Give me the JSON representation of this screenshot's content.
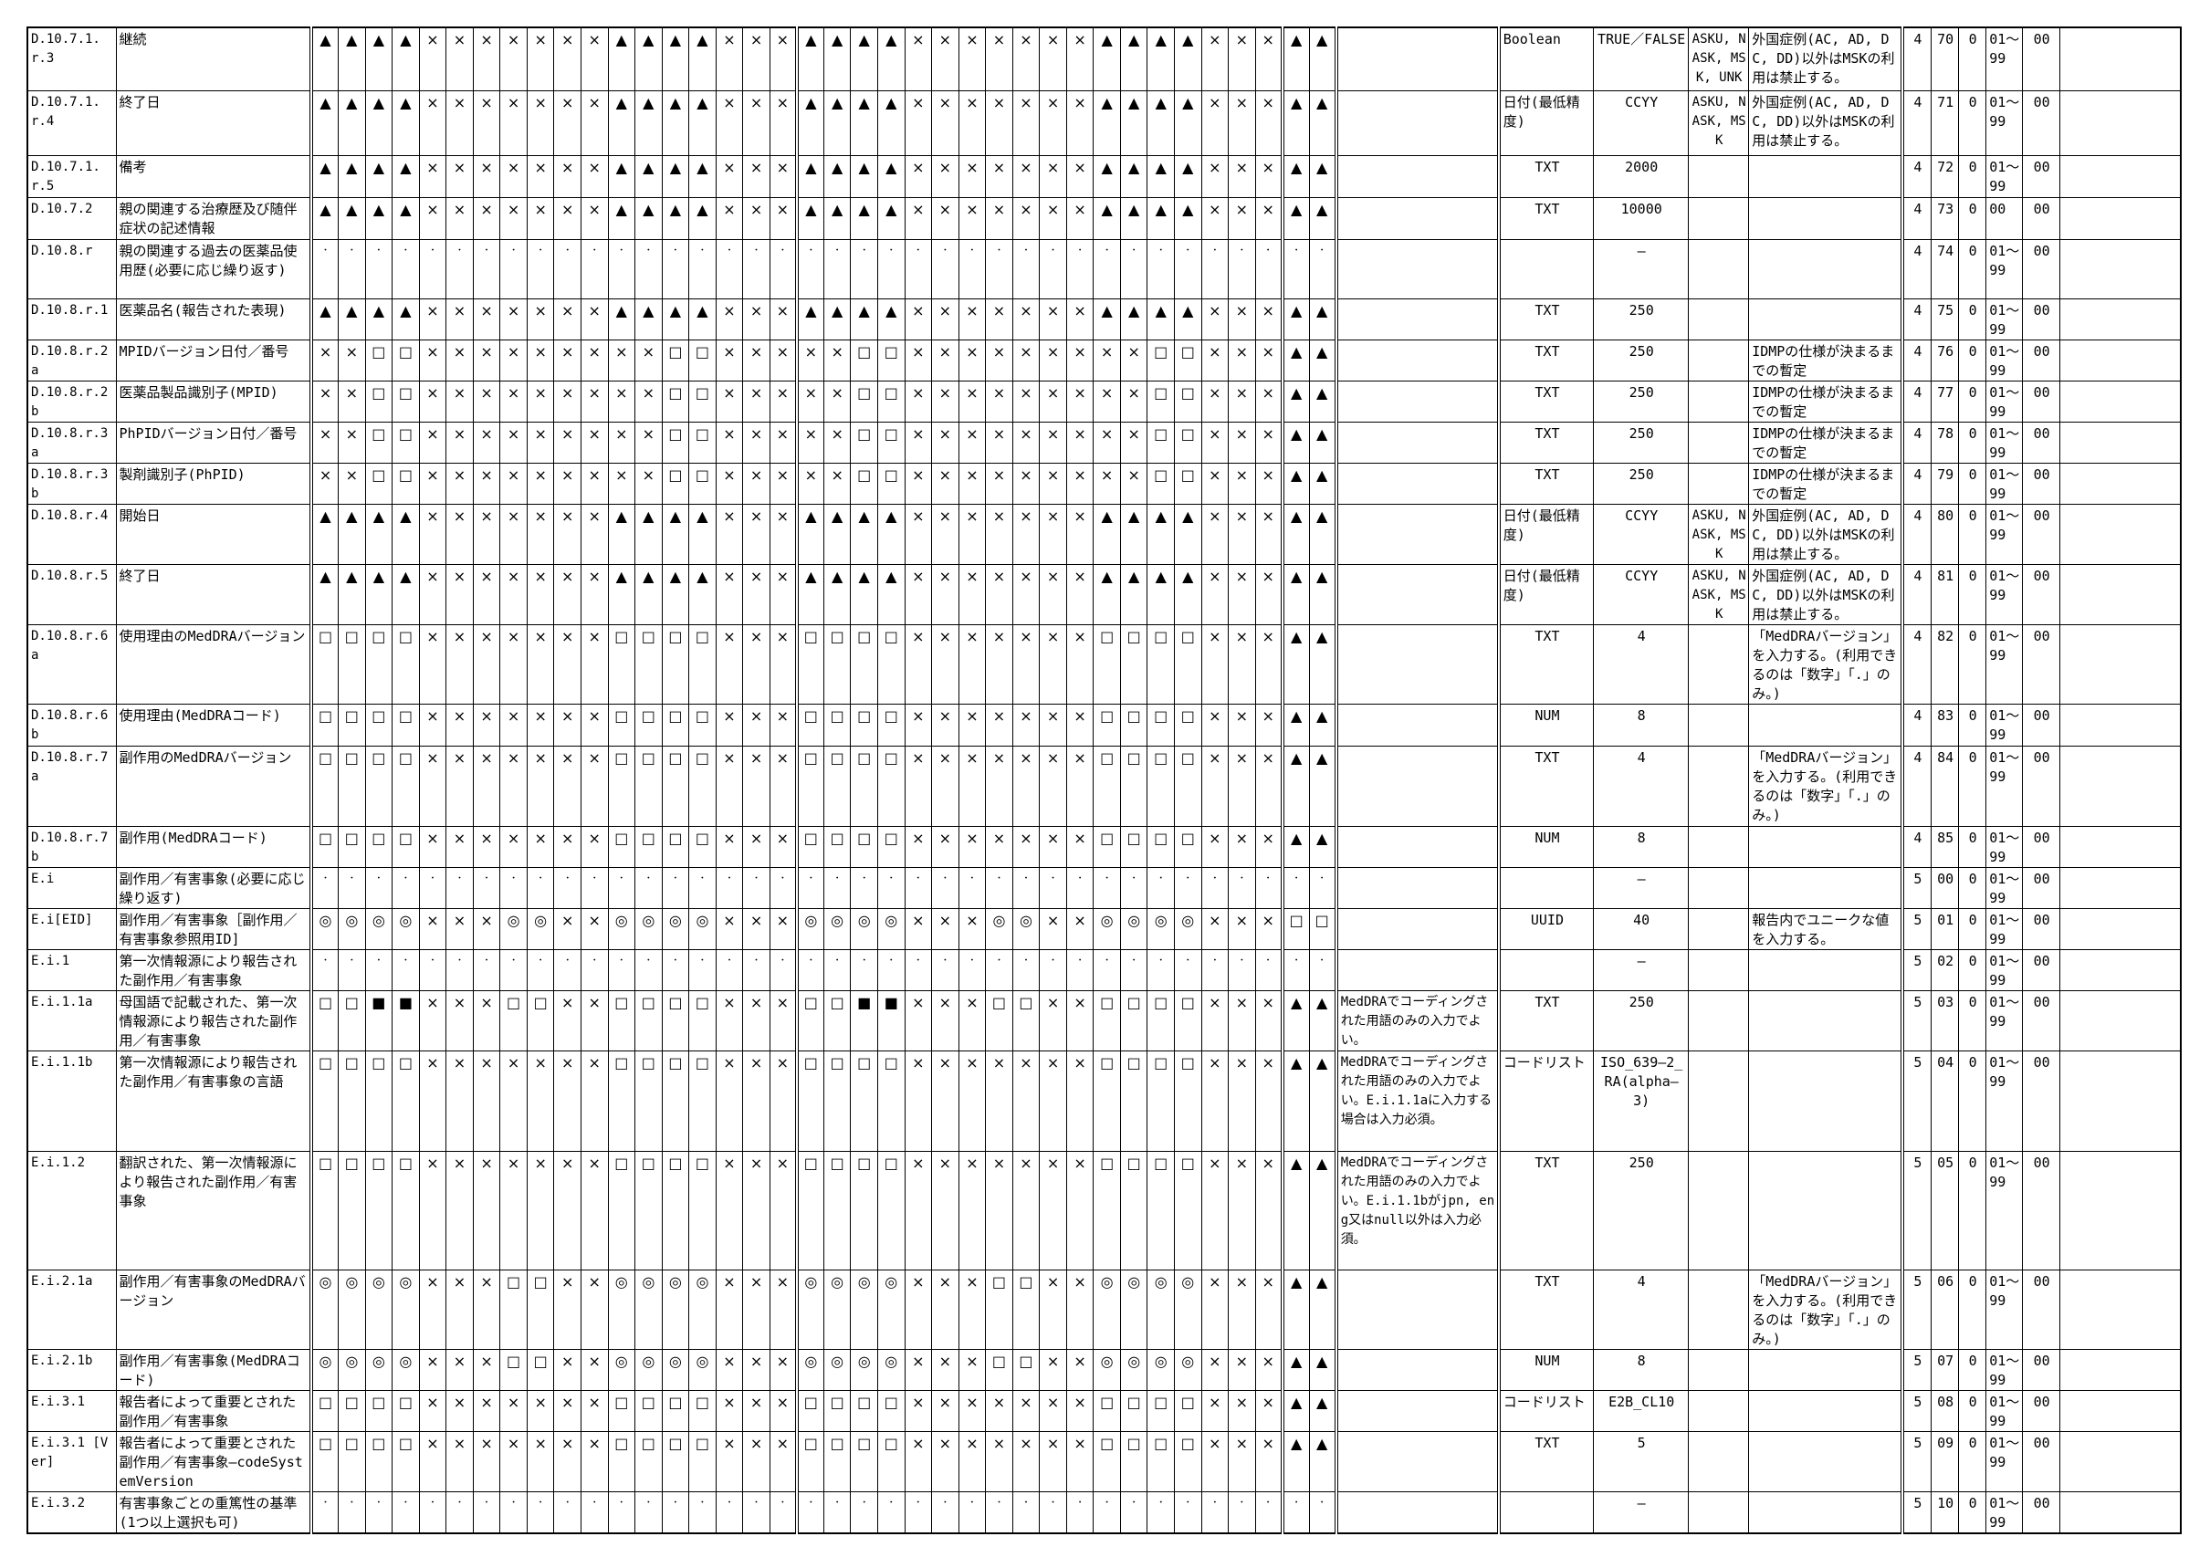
{
  "rows": [
    {
      "id": "D.10.7.1.r.3",
      "name": "継続",
      "g1": "▲▲▲▲×××××××▲▲▲▲×××",
      "g2": "▲▲▲▲×××××××▲▲▲▲×××",
      "g3": "▲▲",
      "notes": "",
      "type": "Boolean",
      "length": "TRUE／FALSE",
      "nullflavor": "ASKU, NASK, MSK, UNK",
      "notes2": "外国症例(AC, AD, DC, DD)以外はMSKの利用は禁止する。",
      "c1": "4",
      "c2": "70",
      "c3": "0",
      "c4": "01～99",
      "c5": "00"
    },
    {
      "id": "D.10.7.1.r.4",
      "name": "終了日",
      "g1": "▲▲▲▲×××××××▲▲▲▲×××",
      "g2": "▲▲▲▲×××××××▲▲▲▲×××",
      "g3": "▲▲",
      "notes": "",
      "type": "日付(最低精度)",
      "length": "CCYY",
      "nullflavor": "ASKU, NASK, MSK",
      "notes2": "外国症例(AC, AD, DC, DD)以外はMSKの利用は禁止する。",
      "c1": "4",
      "c2": "71",
      "c3": "0",
      "c4": "01～99",
      "c5": "00"
    },
    {
      "id": "D.10.7.1.r.5",
      "name": "備考",
      "g1": "▲▲▲▲×××××××▲▲▲▲×××",
      "g2": "▲▲▲▲×××××××▲▲▲▲×××",
      "g3": "▲▲",
      "notes": "",
      "type": "TXT",
      "length": "2000",
      "nullflavor": "",
      "notes2": "",
      "c1": "4",
      "c2": "72",
      "c3": "0",
      "c4": "01～99",
      "c5": "00"
    },
    {
      "id": "D.10.7.2",
      "name": "親の関連する治療歴及び随伴症状の記述情報",
      "g1": "▲▲▲▲×××××××▲▲▲▲×××",
      "g2": "▲▲▲▲×××××××▲▲▲▲×××",
      "g3": "▲▲",
      "notes": "",
      "type": "TXT",
      "length": "10000",
      "nullflavor": "",
      "notes2": "",
      "c1": "4",
      "c2": "73",
      "c3": "0",
      "c4": "00",
      "c5": "00"
    },
    {
      "id": "D.10.8.r",
      "name": "親の関連する過去の医薬品使用歴(必要に応じ繰り返す)",
      "g1": "・・・・・・・・・・・・・・・・・・",
      "g2": "・・・・・・・・・・・・・・・・・・",
      "g3": "・・",
      "notes": "",
      "type": "",
      "length": "—",
      "nullflavor": "",
      "notes2": "",
      "c1": "4",
      "c2": "74",
      "c3": "0",
      "c4": "01～99",
      "c5": "00"
    },
    {
      "id": "D.10.8.r.1",
      "name": "医薬品名(報告された表現)",
      "g1": "▲▲▲▲×××××××▲▲▲▲×××",
      "g2": "▲▲▲▲×××××××▲▲▲▲×××",
      "g3": "▲▲",
      "notes": "",
      "type": "TXT",
      "length": "250",
      "nullflavor": "",
      "notes2": "",
      "c1": "4",
      "c2": "75",
      "c3": "0",
      "c4": "01～99",
      "c5": "00"
    },
    {
      "id": "D.10.8.r.2a",
      "name": "MPIDバージョン日付／番号",
      "g1": "××□□×××××××××□□×××",
      "g2": "××□□×××××××××□□×××",
      "g3": "▲▲",
      "notes": "",
      "type": "TXT",
      "length": "250",
      "nullflavor": "",
      "notes2": "IDMPの仕様が決まるまでの暫定",
      "c1": "4",
      "c2": "76",
      "c3": "0",
      "c4": "01～99",
      "c5": "00"
    },
    {
      "id": "D.10.8.r.2b",
      "name": "医薬品製品識別子(MPID)",
      "g1": "××□□×××××××××□□×××",
      "g2": "××□□×××××××××□□×××",
      "g3": "▲▲",
      "notes": "",
      "type": "TXT",
      "length": "250",
      "nullflavor": "",
      "notes2": "IDMPの仕様が決まるまでの暫定",
      "c1": "4",
      "c2": "77",
      "c3": "0",
      "c4": "01～99",
      "c5": "00"
    },
    {
      "id": "D.10.8.r.3a",
      "name": "PhPIDバージョン日付／番号",
      "g1": "××□□×××××××××□□×××",
      "g2": "××□□×××××××××□□×××",
      "g3": "▲▲",
      "notes": "",
      "type": "TXT",
      "length": "250",
      "nullflavor": "",
      "notes2": "IDMPの仕様が決まるまでの暫定",
      "c1": "4",
      "c2": "78",
      "c3": "0",
      "c4": "01～99",
      "c5": "00"
    },
    {
      "id": "D.10.8.r.3b",
      "name": "製剤識別子(PhPID)",
      "g1": "××□□×××××××××□□×××",
      "g2": "××□□×××××××××□□×××",
      "g3": "▲▲",
      "notes": "",
      "type": "TXT",
      "length": "250",
      "nullflavor": "",
      "notes2": "IDMPの仕様が決まるまでの暫定",
      "c1": "4",
      "c2": "79",
      "c3": "0",
      "c4": "01～99",
      "c5": "00"
    },
    {
      "id": "D.10.8.r.4",
      "name": "開始日",
      "g1": "▲▲▲▲×××××××▲▲▲▲×××",
      "g2": "▲▲▲▲×××××××▲▲▲▲×××",
      "g3": "▲▲",
      "notes": "",
      "type": "日付(最低精度)",
      "length": "CCYY",
      "nullflavor": "ASKU, NASK, MSK",
      "notes2": "外国症例(AC, AD, DC, DD)以外はMSKの利用は禁止する。",
      "c1": "4",
      "c2": "80",
      "c3": "0",
      "c4": "01～99",
      "c5": "00"
    },
    {
      "id": "D.10.8.r.5",
      "name": "終了日",
      "g1": "▲▲▲▲×××××××▲▲▲▲×××",
      "g2": "▲▲▲▲×××××××▲▲▲▲×××",
      "g3": "▲▲",
      "notes": "",
      "type": "日付(最低精度)",
      "length": "CCYY",
      "nullflavor": "ASKU, NASK, MSK",
      "notes2": "外国症例(AC, AD, DC, DD)以外はMSKの利用は禁止する。",
      "c1": "4",
      "c2": "81",
      "c3": "0",
      "c4": "01～99",
      "c5": "00"
    },
    {
      "id": "D.10.8.r.6a",
      "name": "使用理由のMedDRAバージョン",
      "g1": "□□□□×××××××□□□□×××",
      "g2": "□□□□×××××××□□□□×××",
      "g3": "▲▲",
      "notes": "",
      "type": "TXT",
      "length": "4",
      "nullflavor": "",
      "notes2": "「MedDRAバージョン」を入力する。(利用できるのは「数字」「.」のみ。)",
      "c1": "4",
      "c2": "82",
      "c3": "0",
      "c4": "01～99",
      "c5": "00"
    },
    {
      "id": "D.10.8.r.6b",
      "name": "使用理由(MedDRAコード)",
      "g1": "□□□□×××××××□□□□×××",
      "g2": "□□□□×××××××□□□□×××",
      "g3": "▲▲",
      "notes": "",
      "type": "NUM",
      "length": "8",
      "nullflavor": "",
      "notes2": "",
      "c1": "4",
      "c2": "83",
      "c3": "0",
      "c4": "01～99",
      "c5": "00"
    },
    {
      "id": "D.10.8.r.7a",
      "name": "副作用のMedDRAバージョン",
      "g1": "□□□□×××××××□□□□×××",
      "g2": "□□□□×××××××□□□□×××",
      "g3": "▲▲",
      "notes": "",
      "type": "TXT",
      "length": "4",
      "nullflavor": "",
      "notes2": "「MedDRAバージョン」を入力する。(利用できるのは「数字」「.」のみ。)",
      "c1": "4",
      "c2": "84",
      "c3": "0",
      "c4": "01～99",
      "c5": "00"
    },
    {
      "id": "D.10.8.r.7b",
      "name": "副作用(MedDRAコード)",
      "g1": "□□□□×××××××□□□□×××",
      "g2": "□□□□×××××××□□□□×××",
      "g3": "▲▲",
      "notes": "",
      "type": "NUM",
      "length": "8",
      "nullflavor": "",
      "notes2": "",
      "c1": "4",
      "c2": "85",
      "c3": "0",
      "c4": "01～99",
      "c5": "00"
    },
    {
      "id": "E.i",
      "name": "副作用／有害事象(必要に応じ繰り返す)",
      "g1": "・・・・・・・・・・・・・・・・・・",
      "g2": "・・・・・・・・・・・・・・・・・・",
      "g3": "・・",
      "notes": "",
      "type": "",
      "length": "—",
      "nullflavor": "",
      "notes2": "",
      "c1": "5",
      "c2": "00",
      "c3": "0",
      "c4": "01～99",
      "c5": "00"
    },
    {
      "id": "E.i[EID]",
      "name": "副作用／有害事象［副作用／有害事象参照用ID]",
      "g1": "◎◎◎◎×××◎◎××◎◎◎◎×××",
      "g2": "◎◎◎◎×××◎◎××◎◎◎◎×××",
      "g3": "□□",
      "notes": "",
      "type": "UUID",
      "length": "40",
      "nullflavor": "",
      "notes2": "報告内でユニークな値を入力する。",
      "c1": "5",
      "c2": "01",
      "c3": "0",
      "c4": "01～99",
      "c5": "00"
    },
    {
      "id": "E.i.1",
      "name": "第一次情報源により報告された副作用／有害事象",
      "g1": "・・・・・・・・・・・・・・・・・・",
      "g2": "・・・・・・・・・・・・・・・・・・",
      "g3": "・・",
      "notes": "",
      "type": "",
      "length": "—",
      "nullflavor": "",
      "notes2": "",
      "c1": "5",
      "c2": "02",
      "c3": "0",
      "c4": "01～99",
      "c5": "00"
    },
    {
      "id": "E.i.1.1a",
      "name": "母国語で記載された、第一次情報源により報告された副作用／有害事象",
      "g1": "□□■■×××□□××□□□□×××",
      "g2": "□□■■×××□□××□□□□×××",
      "g3": "▲▲",
      "notes": "MedDRAでコーディングされた用語のみの入力でよい。",
      "type": "TXT",
      "length": "250",
      "nullflavor": "",
      "notes2": "",
      "c1": "5",
      "c2": "03",
      "c3": "0",
      "c4": "01～99",
      "c5": "00"
    },
    {
      "id": "E.i.1.1b",
      "name": "第一次情報源により報告された副作用／有害事象の言語",
      "g1": "□□□□×××××××□□□□×××",
      "g2": "□□□□×××××××□□□□×××",
      "g3": "▲▲",
      "notes": "MedDRAでコーディングされた用語のみの入力でよい。E.i.1.1aに入力する場合は入力必須。",
      "type": "コードリスト",
      "length": "ISO_639—2_RA(alpha—3)",
      "nullflavor": "",
      "notes2": "",
      "c1": "5",
      "c2": "04",
      "c3": "0",
      "c4": "01～99",
      "c5": "00"
    },
    {
      "id": "E.i.1.2",
      "name": "翻訳された、第一次情報源により報告された副作用／有害事象",
      "g1": "□□□□×××××××□□□□×××",
      "g2": "□□□□×××××××□□□□×××",
      "g3": "▲▲",
      "notes": "MedDRAでコーディングされた用語のみの入力でよい。E.i.1.1bがjpn, eng又はnull以外は入力必須。",
      "type": "TXT",
      "length": "250",
      "nullflavor": "",
      "notes2": "",
      "c1": "5",
      "c2": "05",
      "c3": "0",
      "c4": "01～99",
      "c5": "00"
    },
    {
      "id": "E.i.2.1a",
      "name": "副作用／有害事象のMedDRAバージョン",
      "g1": "◎◎◎◎×××□□××◎◎◎◎×××",
      "g2": "◎◎◎◎×××□□××◎◎◎◎×××",
      "g3": "▲▲",
      "notes": "",
      "type": "TXT",
      "length": "4",
      "nullflavor": "",
      "notes2": "「MedDRAバージョン」を入力する。(利用できるのは「数字」「.」のみ。)",
      "c1": "5",
      "c2": "06",
      "c3": "0",
      "c4": "01～99",
      "c5": "00"
    },
    {
      "id": "E.i.2.1b",
      "name": "副作用／有害事象(MedDRAコード)",
      "g1": "◎◎◎◎×××□□××◎◎◎◎×××",
      "g2": "◎◎◎◎×××□□××◎◎◎◎×××",
      "g3": "▲▲",
      "notes": "",
      "type": "NUM",
      "length": "8",
      "nullflavor": "",
      "notes2": "",
      "c1": "5",
      "c2": "07",
      "c3": "0",
      "c4": "01～99",
      "c5": "00"
    },
    {
      "id": "E.i.3.1",
      "name": "報告者によって重要とされた副作用／有害事象",
      "g1": "□□□□×××××××□□□□×××",
      "g2": "□□□□×××××××□□□□×××",
      "g3": "▲▲",
      "notes": "",
      "type": "コードリスト",
      "length": "E2B_CL10",
      "nullflavor": "",
      "notes2": "",
      "c1": "5",
      "c2": "08",
      "c3": "0",
      "c4": "01～99",
      "c5": "00"
    },
    {
      "id": "E.i.3.1 [Ver]",
      "name": "報告者によって重要とされた副作用／有害事象—codeSystemVersion",
      "g1": "□□□□×××××××□□□□×××",
      "g2": "□□□□×××××××□□□□×××",
      "g3": "▲▲",
      "notes": "",
      "type": "TXT",
      "length": "5",
      "nullflavor": "",
      "notes2": "",
      "c1": "5",
      "c2": "09",
      "c3": "0",
      "c4": "01～99",
      "c5": "00"
    },
    {
      "id": "E.i.3.2",
      "name": "有害事象ごとの重篤性の基準(1つ以上選択も可)",
      "g1": "・・・・・・・・・・・・・・・・・・",
      "g2": "・・・・・・・・・・・・・・・・・・",
      "g3": "・・",
      "notes": "",
      "type": "",
      "length": "—",
      "nullflavor": "",
      "notes2": "",
      "c1": "5",
      "c2": "10",
      "c3": "0",
      "c4": "01～99",
      "c5": "00"
    }
  ]
}
